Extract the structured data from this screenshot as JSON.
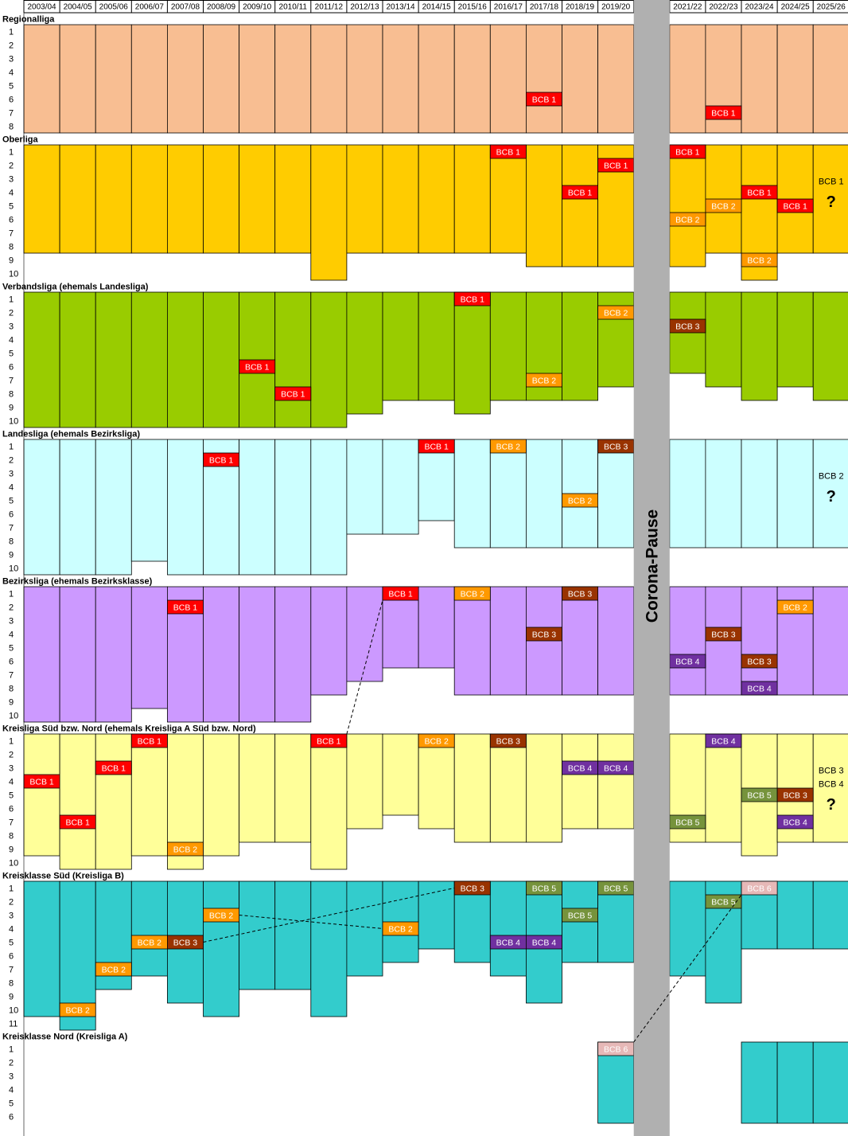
{
  "chart_data": {
    "type": "table",
    "seasons": [
      "2003/04",
      "2004/05",
      "2005/06",
      "2006/07",
      "2007/08",
      "2008/09",
      "2009/10",
      "2010/11",
      "2011/12",
      "2012/13",
      "2013/14",
      "2014/15",
      "2015/16",
      "2016/17",
      "2017/18",
      "2018/19",
      "2019/20",
      "",
      "2021/22",
      "2022/23",
      "2023/24",
      "2024/25",
      "2025/26"
    ],
    "pause": {
      "column": 17,
      "label": "Corona-Pause",
      "color": "#b0b0b0"
    },
    "team_colors": {
      "BCB 1": {
        "bg": "#ff0000",
        "fg": "#ffffff"
      },
      "BCB 2": {
        "bg": "#ff9900",
        "fg": "#ffffff"
      },
      "BCB 3": {
        "bg": "#993300",
        "fg": "#ffffff"
      },
      "BCB 4": {
        "bg": "#7030a0",
        "fg": "#ffffff"
      },
      "BCB 5": {
        "bg": "#76933c",
        "fg": "#ffffff"
      },
      "BCB 6": {
        "bg": "#e6b8b7",
        "fg": "#ffffff"
      }
    },
    "leagues": [
      {
        "title": "Regionalliga",
        "rows": 8,
        "color": "#f8be92",
        "sizes": [
          8,
          8,
          8,
          8,
          8,
          8,
          8,
          8,
          8,
          8,
          8,
          8,
          8,
          8,
          8,
          8,
          8,
          0,
          8,
          8,
          8,
          8,
          8
        ],
        "entries": [
          {
            "season": 14,
            "pos": 6,
            "team": "BCB 1"
          },
          {
            "season": 19,
            "pos": 7,
            "team": "BCB 1"
          }
        ],
        "notes": []
      },
      {
        "title": "Oberliga",
        "rows": 10,
        "color": "#ffcc00",
        "sizes": [
          8,
          8,
          8,
          8,
          8,
          8,
          8,
          8,
          10,
          8,
          8,
          8,
          8,
          8,
          9,
          9,
          9,
          0,
          9,
          8,
          10,
          8,
          8
        ],
        "entries": [
          {
            "season": 13,
            "pos": 1,
            "team": "BCB 1"
          },
          {
            "season": 15,
            "pos": 4,
            "team": "BCB 1"
          },
          {
            "season": 16,
            "pos": 2,
            "team": "BCB 1"
          },
          {
            "season": 18,
            "pos": 1,
            "team": "BCB 1"
          },
          {
            "season": 18,
            "pos": 6,
            "team": "BCB 2"
          },
          {
            "season": 19,
            "pos": 5,
            "team": "BCB 2"
          },
          {
            "season": 20,
            "pos": 4,
            "team": "BCB 1"
          },
          {
            "season": 20,
            "pos": 9,
            "team": "BCB 2"
          },
          {
            "season": 21,
            "pos": 5,
            "team": "BCB 1"
          }
        ],
        "notes": [
          {
            "season": 22,
            "lines": [
              "BCB 1"
            ],
            "question": "?"
          }
        ]
      },
      {
        "title": "Verbandsliga (ehemals Landesliga)",
        "rows": 10,
        "color": "#99cc00",
        "sizes": [
          10,
          10,
          10,
          10,
          10,
          10,
          10,
          10,
          10,
          9,
          8,
          8,
          9,
          8,
          8,
          8,
          7,
          0,
          6,
          7,
          8,
          7,
          8
        ],
        "entries": [
          {
            "season": 6,
            "pos": 6,
            "team": "BCB 1"
          },
          {
            "season": 7,
            "pos": 8,
            "team": "BCB 1"
          },
          {
            "season": 12,
            "pos": 1,
            "team": "BCB 1"
          },
          {
            "season": 14,
            "pos": 7,
            "team": "BCB 2"
          },
          {
            "season": 16,
            "pos": 2,
            "team": "BCB 2"
          },
          {
            "season": 18,
            "pos": 3,
            "team": "BCB 3"
          }
        ],
        "notes": []
      },
      {
        "title": "Landesliga (ehemals Bezirksliga)",
        "rows": 10,
        "color": "#ccffff",
        "sizes": [
          10,
          10,
          10,
          9,
          10,
          10,
          10,
          10,
          10,
          7,
          7,
          6,
          8,
          8,
          8,
          8,
          8,
          0,
          8,
          8,
          8,
          8,
          8
        ],
        "entries": [
          {
            "season": 5,
            "pos": 2,
            "team": "BCB 1"
          },
          {
            "season": 11,
            "pos": 1,
            "team": "BCB 1"
          },
          {
            "season": 13,
            "pos": 1,
            "team": "BCB 2"
          },
          {
            "season": 15,
            "pos": 5,
            "team": "BCB 2"
          },
          {
            "season": 16,
            "pos": 1,
            "team": "BCB 3"
          }
        ],
        "notes": [
          {
            "season": 22,
            "lines": [
              "BCB 2"
            ],
            "question": "?"
          }
        ]
      },
      {
        "title": "Bezirksliga (ehemals Bezirksklasse)",
        "rows": 10,
        "color": "#cc99ff",
        "sizes": [
          10,
          10,
          10,
          9,
          10,
          10,
          10,
          10,
          8,
          7,
          6,
          6,
          8,
          8,
          8,
          8,
          8,
          0,
          8,
          8,
          8,
          8,
          8
        ],
        "entries": [
          {
            "season": 4,
            "pos": 2,
            "team": "BCB 1"
          },
          {
            "season": 10,
            "pos": 1,
            "team": "BCB 1"
          },
          {
            "season": 12,
            "pos": 1,
            "team": "BCB 2"
          },
          {
            "season": 14,
            "pos": 4,
            "team": "BCB 3"
          },
          {
            "season": 15,
            "pos": 1,
            "team": "BCB 3"
          },
          {
            "season": 18,
            "pos": 6,
            "team": "BCB 4"
          },
          {
            "season": 19,
            "pos": 4,
            "team": "BCB 3"
          },
          {
            "season": 20,
            "pos": 6,
            "team": "BCB 3"
          },
          {
            "season": 20,
            "pos": 8,
            "team": "BCB 4"
          },
          {
            "season": 21,
            "pos": 2,
            "team": "BCB 2"
          }
        ],
        "notes": []
      },
      {
        "title": "Kreisliga Süd bzw. Nord (ehemals Kreisliga A Süd bzw. Nord)",
        "rows": 10,
        "color": "#ffff99",
        "sizes": [
          9,
          10,
          10,
          9,
          10,
          9,
          8,
          8,
          10,
          7,
          6,
          7,
          8,
          8,
          8,
          7,
          7,
          0,
          8,
          8,
          9,
          8,
          8
        ],
        "entries": [
          {
            "season": 0,
            "pos": 4,
            "team": "BCB 1"
          },
          {
            "season": 1,
            "pos": 7,
            "team": "BCB 1"
          },
          {
            "season": 2,
            "pos": 3,
            "team": "BCB 1"
          },
          {
            "season": 3,
            "pos": 1,
            "team": "BCB 1"
          },
          {
            "season": 4,
            "pos": 9,
            "team": "BCB 2"
          },
          {
            "season": 8,
            "pos": 1,
            "team": "BCB 1"
          },
          {
            "season": 11,
            "pos": 1,
            "team": "BCB 2"
          },
          {
            "season": 13,
            "pos": 1,
            "team": "BCB 3"
          },
          {
            "season": 15,
            "pos": 3,
            "team": "BCB 4"
          },
          {
            "season": 16,
            "pos": 3,
            "team": "BCB 4"
          },
          {
            "season": 18,
            "pos": 7,
            "team": "BCB 5"
          },
          {
            "season": 19,
            "pos": 1,
            "team": "BCB 4"
          },
          {
            "season": 20,
            "pos": 5,
            "team": "BCB 5"
          },
          {
            "season": 21,
            "pos": 5,
            "team": "BCB 3"
          },
          {
            "season": 21,
            "pos": 7,
            "team": "BCB 4"
          }
        ],
        "notes": [
          {
            "season": 22,
            "lines": [
              "BCB 3",
              "BCB 4"
            ],
            "question": "?"
          }
        ]
      },
      {
        "title": "Kreisklasse Süd (Kreisliga B)",
        "rows": 11,
        "color": "#33cccc",
        "sizes": [
          10,
          11,
          8,
          7,
          9,
          10,
          8,
          8,
          10,
          7,
          6,
          5,
          6,
          7,
          9,
          6,
          6,
          0,
          7,
          9,
          5,
          5,
          5
        ],
        "entries": [
          {
            "season": 1,
            "pos": 10,
            "team": "BCB 2"
          },
          {
            "season": 2,
            "pos": 7,
            "team": "BCB 2"
          },
          {
            "season": 3,
            "pos": 5,
            "team": "BCB 2"
          },
          {
            "season": 4,
            "pos": 5,
            "team": "BCB 3"
          },
          {
            "season": 5,
            "pos": 3,
            "team": "BCB 2"
          },
          {
            "season": 10,
            "pos": 4,
            "team": "BCB 2"
          },
          {
            "season": 12,
            "pos": 1,
            "team": "BCB 3"
          },
          {
            "season": 13,
            "pos": 5,
            "team": "BCB 4"
          },
          {
            "season": 14,
            "pos": 1,
            "team": "BCB 5"
          },
          {
            "season": 14,
            "pos": 5,
            "team": "BCB 4"
          },
          {
            "season": 15,
            "pos": 3,
            "team": "BCB 5"
          },
          {
            "season": 16,
            "pos": 1,
            "team": "BCB 5"
          },
          {
            "season": 19,
            "pos": 2,
            "team": "BCB 5"
          },
          {
            "season": 20,
            "pos": 1,
            "team": "BCB 6"
          }
        ],
        "notes": []
      },
      {
        "title": "Kreisklasse Nord (Kreisliga A)",
        "rows": 6,
        "color": "#33cccc",
        "sizes": [
          0,
          0,
          0,
          0,
          0,
          0,
          0,
          0,
          0,
          0,
          0,
          0,
          0,
          0,
          0,
          0,
          6,
          0,
          0,
          0,
          6,
          6,
          6
        ],
        "entries": [
          {
            "season": 16,
            "pos": 1,
            "team": "BCB 6"
          }
        ],
        "notes": []
      }
    ],
    "links": [
      {
        "from": {
          "league": 5,
          "season": 8,
          "pos": 1
        },
        "to": {
          "league": 4,
          "season": 10,
          "pos": 1
        }
      },
      {
        "from": {
          "league": 6,
          "season": 4,
          "pos": 5
        },
        "to": {
          "league": 6,
          "season": 12,
          "pos": 1
        }
      },
      {
        "from": {
          "league": 6,
          "season": 5,
          "pos": 3
        },
        "to": {
          "league": 6,
          "season": 10,
          "pos": 4
        }
      },
      {
        "from": {
          "league": 7,
          "season": 16,
          "pos": 1
        },
        "to": {
          "league": 6,
          "season": 20,
          "pos": 1
        }
      }
    ]
  }
}
